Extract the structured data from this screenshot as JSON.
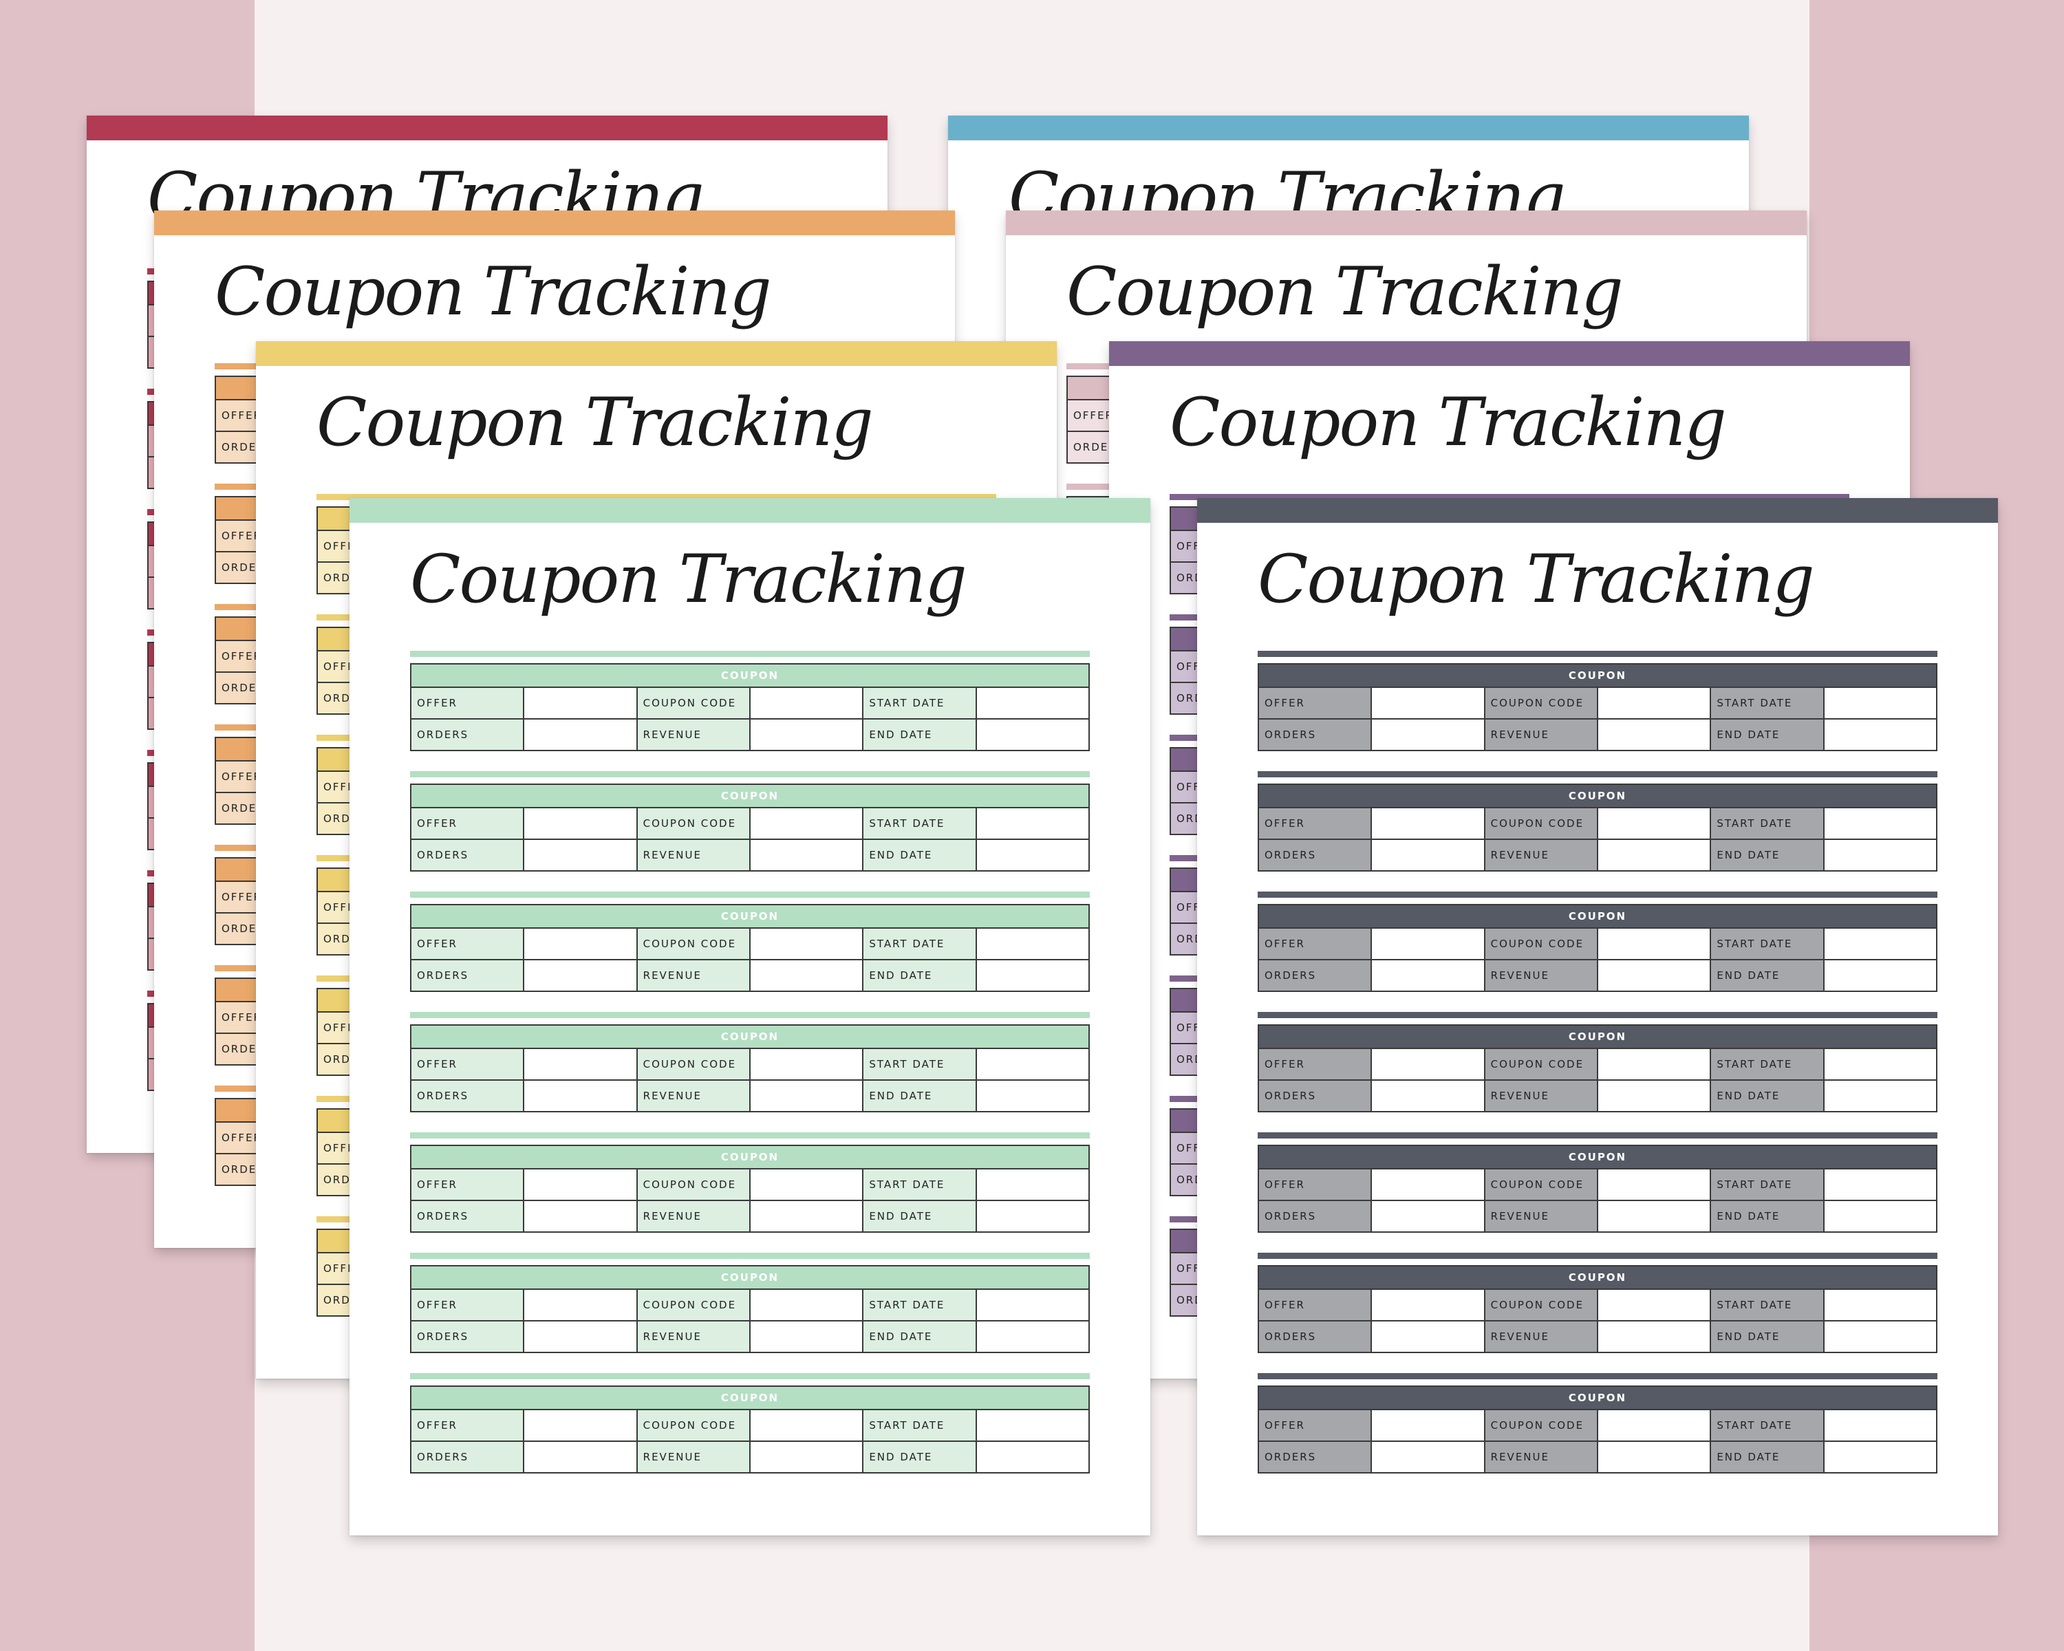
{
  "page": {
    "background": "#f7f0f1",
    "side_band_color": "#e0c1c8"
  },
  "title": "Coupon Tracking",
  "form": {
    "coupon_header": "COUPON",
    "labels": {
      "offer": "OFFER",
      "coupon_code": "COUPON CODE",
      "start_date": "START DATE",
      "orders": "ORDERS",
      "revenue": "REVENUE",
      "end_date": "END DATE"
    }
  },
  "sheets": [
    {
      "theme": "red",
      "accent": "#b23a52",
      "label_fill": "#e4aab5"
    },
    {
      "theme": "blue",
      "accent": "#6ab0cb",
      "label_fill": "#cfe6ef"
    },
    {
      "theme": "orange",
      "accent": "#eaa96a",
      "label_fill": "#f6dcc1"
    },
    {
      "theme": "pink",
      "accent": "#dcbcc3",
      "label_fill": "#f0e0e3"
    },
    {
      "theme": "yellow",
      "accent": "#ecd072",
      "label_fill": "#f8ecc4"
    },
    {
      "theme": "purple",
      "accent": "#7e648c",
      "label_fill": "#cdbfd3"
    },
    {
      "theme": "mint-green",
      "accent": "#b4dfc3",
      "label_fill": "#dcefe1"
    },
    {
      "theme": "slate",
      "accent": "#555a65",
      "label_fill": "#a6a7aa"
    }
  ]
}
